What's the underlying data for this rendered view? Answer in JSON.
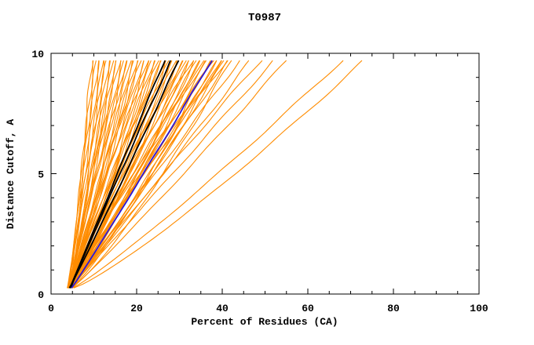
{
  "chart_data": {
    "type": "line",
    "title": "T0987",
    "xlabel": "Percent of Residues (CA)",
    "ylabel": "Distance Cutoff, A",
    "xlim": [
      0,
      100
    ],
    "ylim": [
      0,
      10
    ],
    "x_major_ticks": [
      0,
      20,
      40,
      60,
      80,
      100
    ],
    "x_minor_step": 5,
    "y_major_ticks": [
      0,
      5,
      10
    ],
    "y_minor_step": 1,
    "grid": false,
    "legend": "none",
    "curve_y_start": 0.25,
    "curve_y_end": 9.7,
    "colors": {
      "ensemble": "#FF8C00",
      "highlight": "#000000",
      "reference": "#2B16D6",
      "axis": "#000000"
    },
    "series_note": "each curve = [x_at_bottom, x_at_top, shape_exponent]; x(t)=x0+(x1-x0)*t^k with y from curve_y_start to curve_y_end",
    "ensemble": [
      [
        4.0,
        9.5,
        0.85
      ],
      [
        4.3,
        10.0,
        1.05
      ],
      [
        3.8,
        10.5,
        0.9
      ],
      [
        4.6,
        11.0,
        1.1
      ],
      [
        4.1,
        11.5,
        0.95
      ],
      [
        4.4,
        12.0,
        0.8
      ],
      [
        3.9,
        12.5,
        1.0
      ],
      [
        4.7,
        13.0,
        1.15
      ],
      [
        4.2,
        13.5,
        0.88
      ],
      [
        4.5,
        14.0,
        1.02
      ],
      [
        4.0,
        14.5,
        0.85
      ],
      [
        4.3,
        15.0,
        1.05
      ],
      [
        3.8,
        15.5,
        0.9
      ],
      [
        4.6,
        16.0,
        1.1
      ],
      [
        4.1,
        16.5,
        0.95
      ],
      [
        4.4,
        17.0,
        0.8
      ],
      [
        3.9,
        17.5,
        1.0
      ],
      [
        4.7,
        18.0,
        1.15
      ],
      [
        4.2,
        18.5,
        0.88
      ],
      [
        4.5,
        19.0,
        1.02
      ],
      [
        4.0,
        19.5,
        0.85
      ],
      [
        4.3,
        20.0,
        1.05
      ],
      [
        3.8,
        20.5,
        0.9
      ],
      [
        4.6,
        21.0,
        1.1
      ],
      [
        4.1,
        21.5,
        0.95
      ],
      [
        4.4,
        22.0,
        0.8
      ],
      [
        3.9,
        22.5,
        1.0
      ],
      [
        4.7,
        23.0,
        1.15
      ],
      [
        4.2,
        23.5,
        0.88
      ],
      [
        4.5,
        24.0,
        1.02
      ],
      [
        4.0,
        24.5,
        0.85
      ],
      [
        4.3,
        25.0,
        1.05
      ],
      [
        3.8,
        25.5,
        0.9
      ],
      [
        4.6,
        26.0,
        1.1
      ],
      [
        4.1,
        26.5,
        0.95
      ],
      [
        4.4,
        27.0,
        0.8
      ],
      [
        3.9,
        27.5,
        1.0
      ],
      [
        4.7,
        28.0,
        1.15
      ],
      [
        4.2,
        28.5,
        0.88
      ],
      [
        4.5,
        29.0,
        1.02
      ],
      [
        4.0,
        29.5,
        0.85
      ],
      [
        4.3,
        30.0,
        1.05
      ],
      [
        3.8,
        30.5,
        0.9
      ],
      [
        4.6,
        31.0,
        1.1
      ],
      [
        4.1,
        31.5,
        0.95
      ],
      [
        4.4,
        32.0,
        0.8
      ],
      [
        3.9,
        32.5,
        1.0
      ],
      [
        4.7,
        33.0,
        1.15
      ],
      [
        4.2,
        33.5,
        0.88
      ],
      [
        4.5,
        34.0,
        1.02
      ],
      [
        4.0,
        34.5,
        0.85
      ],
      [
        4.3,
        35.0,
        1.05
      ],
      [
        3.8,
        35.5,
        0.9
      ],
      [
        4.6,
        36.0,
        1.1
      ],
      [
        4.1,
        36.5,
        0.95
      ],
      [
        4.4,
        37.0,
        0.8
      ],
      [
        3.9,
        37.5,
        1.0
      ],
      [
        4.7,
        38.0,
        1.15
      ],
      [
        4.2,
        38.5,
        0.88
      ],
      [
        4.5,
        39.0,
        1.02
      ],
      [
        4.0,
        39.5,
        0.85
      ],
      [
        4.3,
        40.0,
        1.05
      ],
      [
        3.8,
        40.5,
        0.9
      ],
      [
        4.6,
        41.0,
        1.1
      ],
      [
        4.1,
        41.5,
        0.95
      ],
      [
        4.4,
        42.0,
        0.8
      ],
      [
        4.6,
        44.0,
        1.0
      ],
      [
        4.2,
        46.5,
        0.95
      ],
      [
        4.8,
        49.0,
        1.05
      ],
      [
        4.5,
        52.0,
        1.0
      ],
      [
        4.9,
        55.0,
        0.95
      ],
      [
        5.0,
        68.0,
        0.9
      ],
      [
        5.3,
        73.0,
        0.85
      ]
    ],
    "highlight_curves": [
      [
        4.4,
        26.5,
        1.0
      ],
      [
        4.6,
        28.0,
        1.03
      ],
      [
        4.3,
        29.8,
        0.97
      ]
    ],
    "reference_curves": [
      [
        4.8,
        37.5,
        0.97
      ]
    ]
  }
}
